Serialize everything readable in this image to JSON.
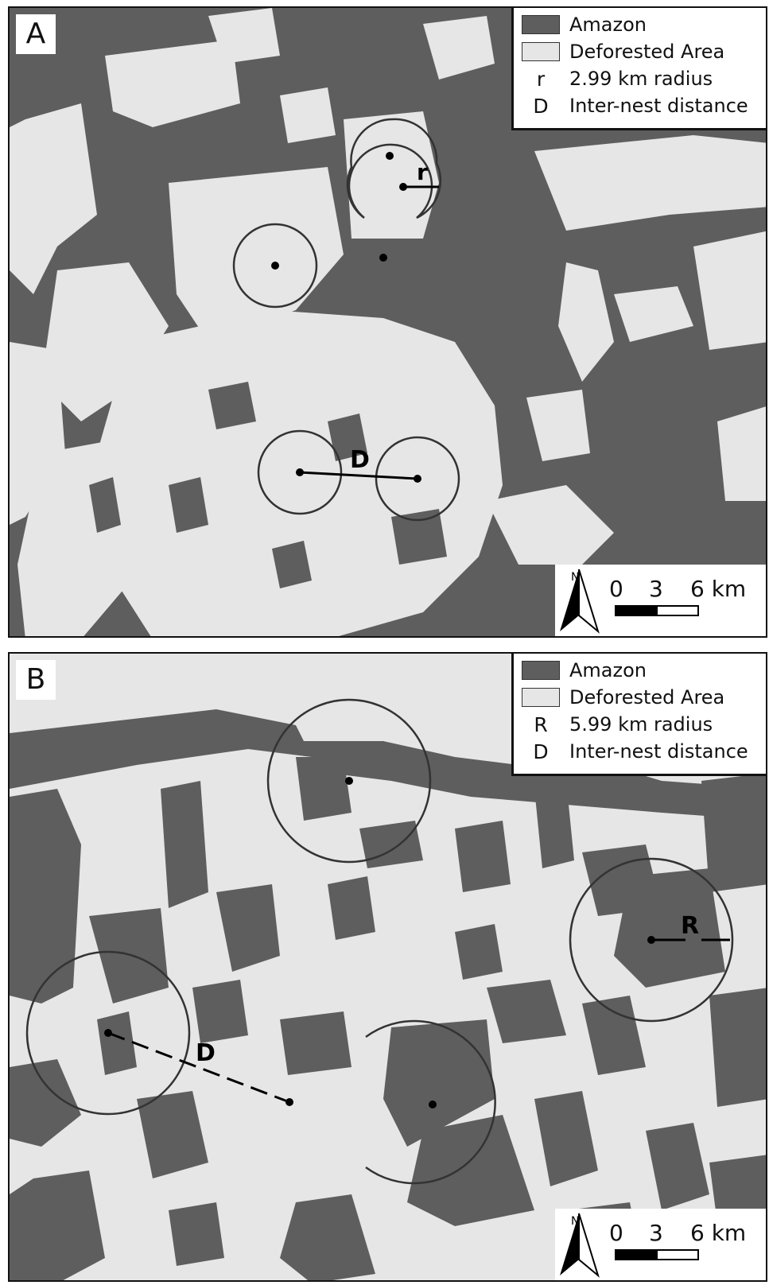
{
  "panels": [
    {
      "label": "A",
      "legend": {
        "amazon": "Amazon",
        "deforested": "Deforested Area",
        "radius_symbol": "r",
        "radius_label": "2.99 km radius",
        "distance_symbol": "D",
        "distance_label": "Inter-nest distance"
      },
      "measure_labels": {
        "radius": "r",
        "distance": "D"
      },
      "scale": {
        "north": "N",
        "t0": "0",
        "t1": "3",
        "t2": "6 km"
      }
    },
    {
      "label": "B",
      "legend": {
        "amazon": "Amazon",
        "deforested": "Deforested Area",
        "radius_symbol": "R",
        "radius_label": "5.99 km radius",
        "distance_symbol": "D",
        "distance_label": "Inter-nest distance"
      },
      "measure_labels": {
        "radius": "R",
        "distance": "D"
      },
      "scale": {
        "north": "N",
        "t0": "0",
        "t1": "3",
        "t2": "6 km"
      }
    }
  ],
  "colors": {
    "amazon": "#5e5e5e",
    "deforested": "#e6e6e6",
    "ink": "#111111",
    "buffer_line": "#333333"
  }
}
